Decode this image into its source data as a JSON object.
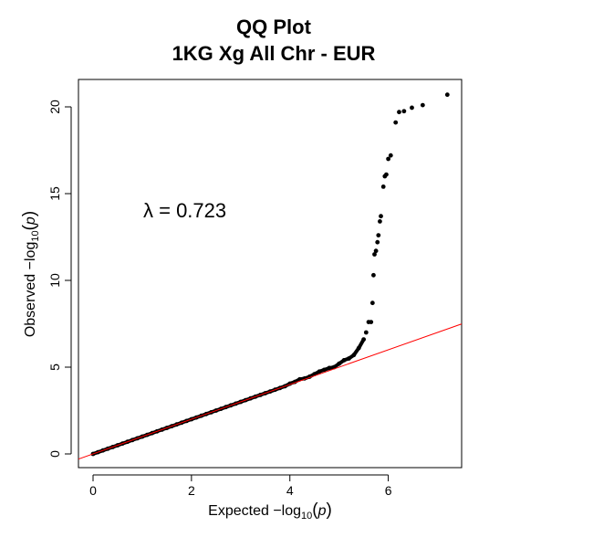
{
  "chart_data": {
    "type": "scatter",
    "title": "QQ Plot",
    "subtitle": "1KG Xg All Chr - EUR",
    "xlabel": "Expected  −log10(p)",
    "ylabel": "Observed  −log10(p)",
    "xlabel_parts": {
      "prefix": "Expected  −log",
      "sub": "10",
      "open": "(",
      "var": "p",
      "close": ")"
    },
    "ylabel_parts": {
      "prefix": "Observed  −log",
      "sub": "10",
      "open": "(",
      "var": "p",
      "close": ")"
    },
    "annotation": "λ = 0.723",
    "xlim": [
      0,
      7.2
    ],
    "ylim": [
      0,
      20.7
    ],
    "x_ticks": [
      0,
      2,
      4,
      6
    ],
    "y_ticks": [
      0,
      5,
      10,
      15,
      20
    ],
    "grid": false,
    "reference_line": {
      "slope": 1,
      "intercept": 0,
      "color": "#ff0000"
    },
    "point_color": "#000000",
    "points": [
      [
        0.0,
        0.0
      ],
      [
        0.1,
        0.1
      ],
      [
        0.2,
        0.2
      ],
      [
        0.3,
        0.3
      ],
      [
        0.4,
        0.4
      ],
      [
        0.5,
        0.5
      ],
      [
        0.6,
        0.6
      ],
      [
        0.7,
        0.7
      ],
      [
        0.8,
        0.8
      ],
      [
        0.9,
        0.9
      ],
      [
        1.0,
        1.0
      ],
      [
        1.1,
        1.1
      ],
      [
        1.2,
        1.2
      ],
      [
        1.3,
        1.3
      ],
      [
        1.4,
        1.4
      ],
      [
        1.5,
        1.5
      ],
      [
        1.6,
        1.6
      ],
      [
        1.7,
        1.7
      ],
      [
        1.8,
        1.8
      ],
      [
        1.9,
        1.9
      ],
      [
        2.0,
        2.0
      ],
      [
        2.1,
        2.1
      ],
      [
        2.2,
        2.2
      ],
      [
        2.3,
        2.3
      ],
      [
        2.4,
        2.4
      ],
      [
        2.5,
        2.5
      ],
      [
        2.6,
        2.6
      ],
      [
        2.7,
        2.7
      ],
      [
        2.8,
        2.8
      ],
      [
        2.9,
        2.9
      ],
      [
        3.0,
        3.0
      ],
      [
        3.1,
        3.1
      ],
      [
        3.2,
        3.2
      ],
      [
        3.3,
        3.3
      ],
      [
        3.4,
        3.4
      ],
      [
        3.5,
        3.5
      ],
      [
        3.6,
        3.6
      ],
      [
        3.7,
        3.7
      ],
      [
        3.8,
        3.8
      ],
      [
        3.9,
        3.9
      ],
      [
        4.0,
        4.05
      ],
      [
        4.1,
        4.15
      ],
      [
        4.2,
        4.3
      ],
      [
        4.3,
        4.35
      ],
      [
        4.4,
        4.45
      ],
      [
        4.5,
        4.6
      ],
      [
        4.6,
        4.75
      ],
      [
        4.7,
        4.85
      ],
      [
        4.8,
        4.95
      ],
      [
        4.9,
        5.0
      ],
      [
        5.0,
        5.2
      ],
      [
        5.1,
        5.4
      ],
      [
        5.2,
        5.5
      ],
      [
        5.3,
        5.7
      ],
      [
        5.4,
        6.1
      ],
      [
        5.5,
        6.6
      ],
      [
        5.55,
        7.0
      ],
      [
        5.6,
        7.6
      ],
      [
        5.65,
        7.6
      ],
      [
        5.68,
        8.7
      ],
      [
        5.7,
        10.3
      ],
      [
        5.72,
        11.5
      ],
      [
        5.75,
        11.7
      ],
      [
        5.78,
        12.2
      ],
      [
        5.8,
        12.6
      ],
      [
        5.83,
        13.4
      ],
      [
        5.85,
        13.7
      ],
      [
        5.9,
        15.4
      ],
      [
        5.93,
        16.0
      ],
      [
        5.96,
        16.1
      ],
      [
        6.0,
        17.0
      ],
      [
        6.05,
        17.2
      ],
      [
        6.15,
        19.1
      ],
      [
        6.22,
        19.7
      ],
      [
        6.32,
        19.75
      ],
      [
        6.48,
        19.95
      ],
      [
        6.7,
        20.1
      ],
      [
        7.2,
        20.7
      ]
    ]
  }
}
